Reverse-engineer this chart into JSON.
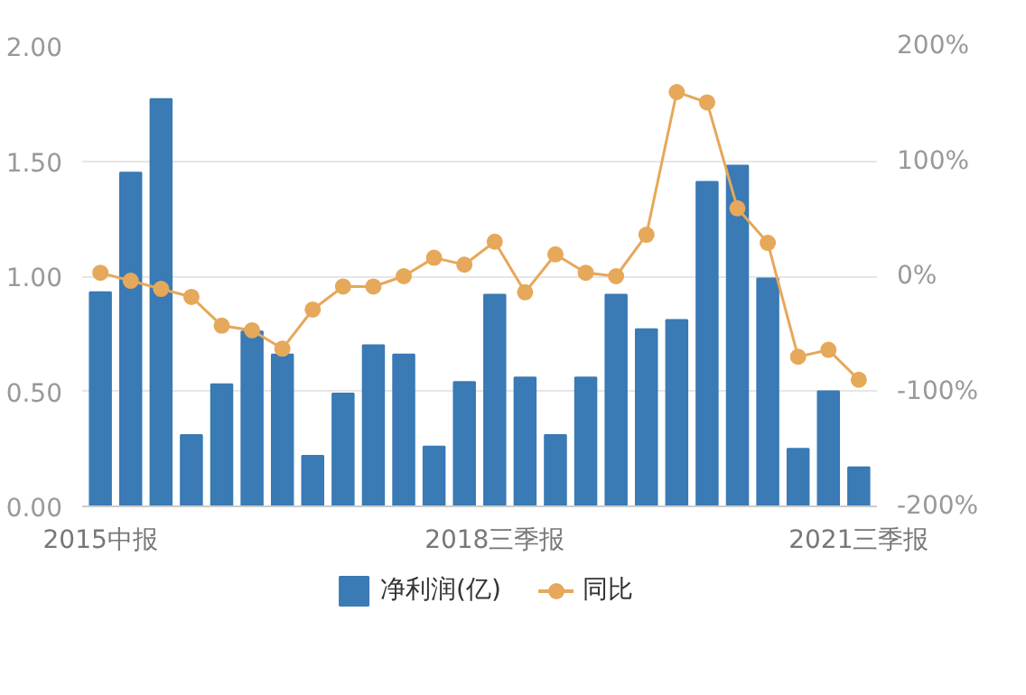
{
  "chart_data": {
    "type": "bar",
    "categories": [
      "2015中报",
      null,
      null,
      null,
      null,
      null,
      null,
      null,
      null,
      null,
      null,
      null,
      null,
      "2018三季报",
      null,
      null,
      null,
      null,
      null,
      null,
      null,
      null,
      null,
      null,
      null,
      "2021三季报"
    ],
    "series": [
      {
        "name": "净利润(亿)",
        "type": "bar",
        "color": "#3a7ab5",
        "values": [
          0.93,
          1.45,
          1.77,
          0.31,
          0.53,
          0.76,
          0.66,
          0.22,
          0.49,
          0.7,
          0.66,
          0.26,
          0.54,
          0.92,
          0.56,
          0.31,
          0.56,
          0.92,
          0.77,
          0.81,
          1.41,
          1.48,
          0.99,
          0.25,
          0.5,
          0.17
        ]
      },
      {
        "name": "同比",
        "type": "line",
        "axis": "y2",
        "color": "#e6a85a",
        "marker": "circle",
        "values": [
          3,
          -4,
          -11,
          -18,
          -43,
          -47,
          -63,
          -29,
          -9,
          -9,
          0,
          16,
          10,
          30,
          -14,
          19,
          3,
          0,
          36,
          160,
          151,
          59,
          29,
          -70,
          -64,
          -90
        ]
      }
    ],
    "ylim": [
      0,
      2
    ],
    "yticks": [
      {
        "value": 0,
        "label": "0.00"
      },
      {
        "value": 0.5,
        "label": "0.50"
      },
      {
        "value": 1,
        "label": "1.00"
      },
      {
        "value": 1.5,
        "label": "1.50"
      },
      {
        "value": 2,
        "label": "2.00"
      }
    ],
    "y2lim": [
      -200,
      200
    ],
    "y2ticks": [
      {
        "value": -200,
        "label": "-200%"
      },
      {
        "value": -100,
        "label": "-100%"
      },
      {
        "value": 0,
        "label": "0%"
      },
      {
        "value": 100,
        "label": "100%"
      },
      {
        "value": 200,
        "label": "200%"
      }
    ],
    "grid": "y",
    "legend": "bottom"
  }
}
